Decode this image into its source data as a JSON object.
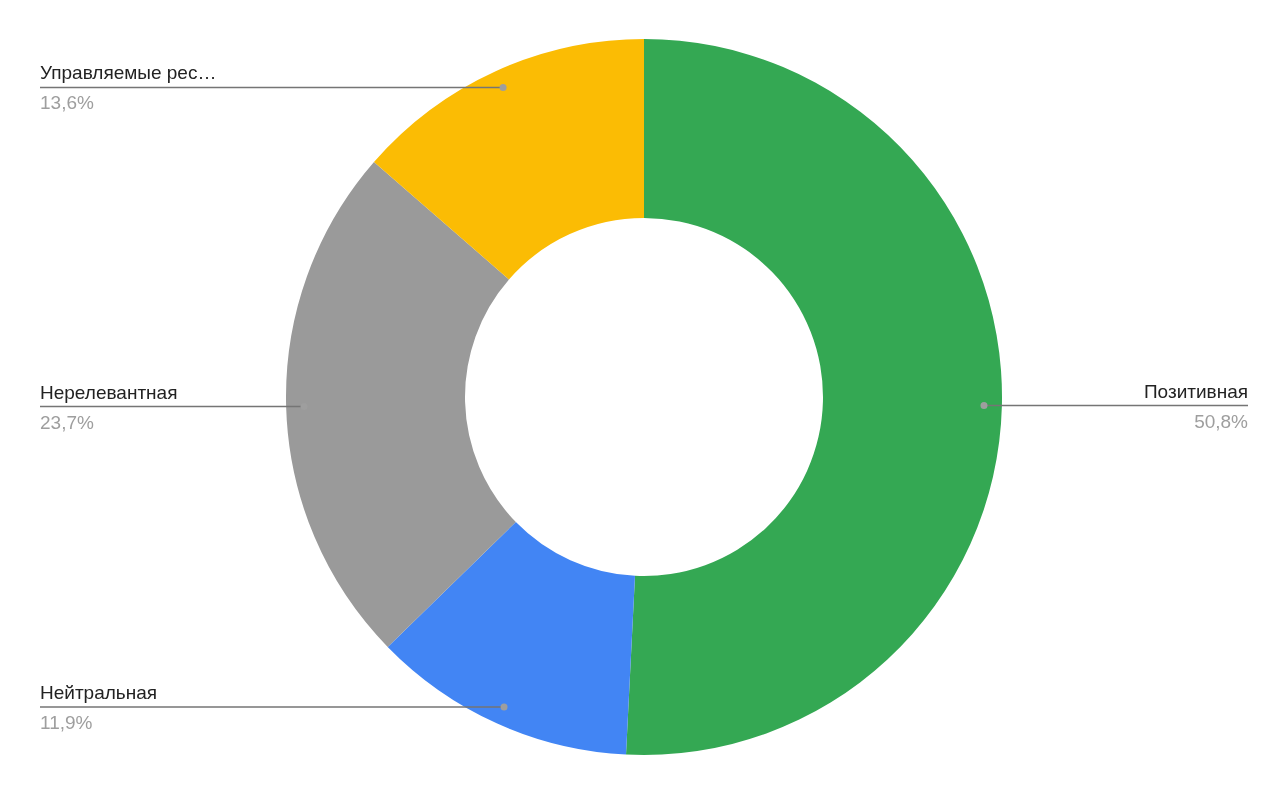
{
  "chart_data": {
    "type": "donut",
    "categories": [
      "Позитивная",
      "Нейтральная",
      "Нерелевантная",
      "Управляемые рес…"
    ],
    "values": [
      50.8,
      11.9,
      23.7,
      13.6
    ],
    "colors": [
      "#34a853",
      "#4285f4",
      "#9a9a9a",
      "#fbbc04"
    ],
    "value_labels": [
      "50,8%",
      "11,9%",
      "23,7%",
      "13,6%"
    ],
    "legend": false
  }
}
